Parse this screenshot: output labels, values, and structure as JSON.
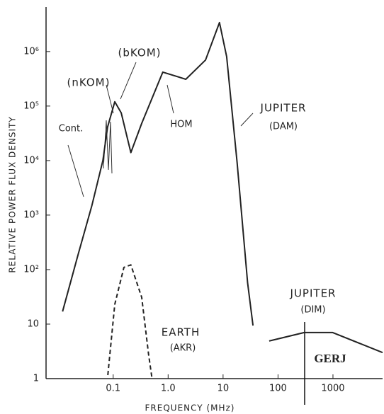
{
  "chart_data": {
    "type": "line",
    "x_label": "FREQUENCY (MHz)",
    "y_label": "RELATIVE POWER FLUX DENSITY",
    "xscale": "log",
    "yscale": "log",
    "xlim": [
      0.006,
      8000
    ],
    "ylim": [
      1,
      5000000
    ],
    "xticks": [
      0.1,
      {
        "value": 1,
        "label": "1.0"
      },
      10,
      100,
      1000
    ],
    "yticks": [
      1,
      10,
      {
        "value": 100,
        "label": "10²"
      },
      {
        "value": 1000,
        "label": "10³"
      },
      {
        "value": 10000,
        "label": "10⁴"
      },
      {
        "value": 100000,
        "label": "10⁵"
      },
      {
        "value": 1000000,
        "label": "10⁶"
      }
    ],
    "series": [
      {
        "color": "#222222",
        "dashed": false,
        "x": [
          0.012,
          0.023,
          0.041,
          0.065,
          0.079,
          0.107,
          0.14,
          0.21,
          0.33,
          0.8,
          2.1,
          4.8,
          8.6,
          11.6,
          18,
          28,
          35
        ],
        "y": [
          17,
          190,
          1500,
          10000,
          41000,
          120000,
          75000,
          14000,
          48000,
          420000,
          310000,
          700000,
          3400000,
          810000,
          9100,
          57,
          9.4
        ]
      },
      {
        "color": "#222222",
        "dashed": true,
        "x": [
          0.08,
          0.107,
          0.157,
          0.21,
          0.33,
          0.44,
          0.51
        ],
        "y": [
          1.16,
          23,
          110,
          122,
          31,
          2.8,
          1
        ]
      },
      {
        "color": "#222222",
        "dashed": false,
        "x": [
          69,
          300,
          990,
          8000
        ],
        "y": [
          4.9,
          7,
          7,
          3
        ]
      }
    ],
    "annotations": [
      "(bKOM)",
      "(nKOM)",
      "Cont.",
      "HOM",
      "JUPITER",
      "(DAM)",
      "JUPITER",
      "(DIM)",
      "EARTH",
      "(AKR)",
      "GERJ"
    ]
  }
}
